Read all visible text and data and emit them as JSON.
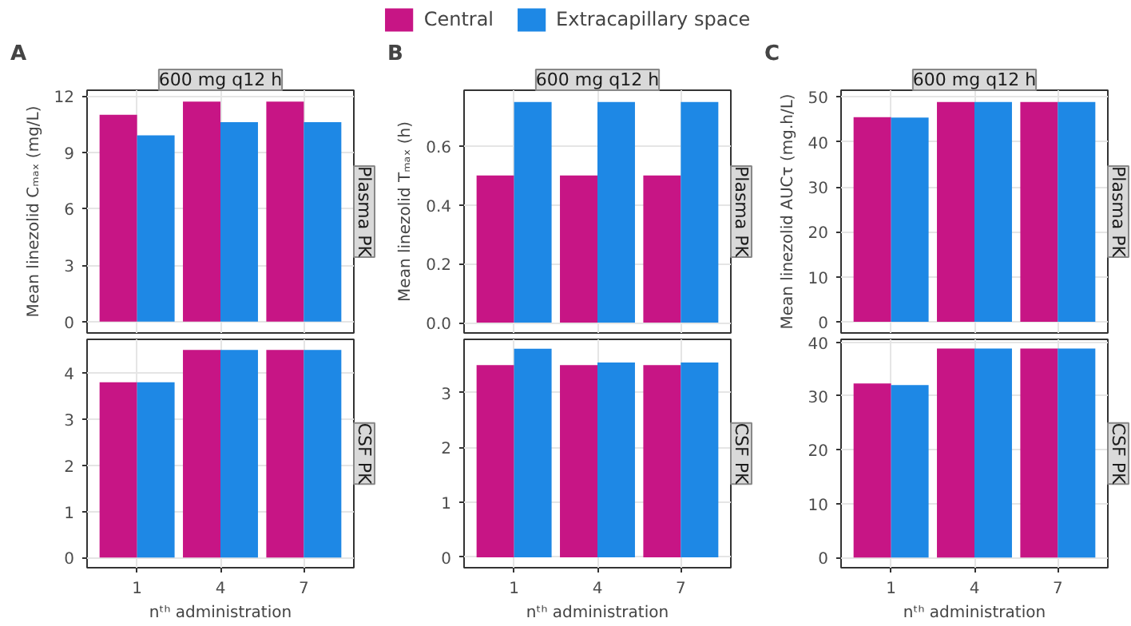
{
  "chart_data": [
    {
      "type": "bar",
      "title": "A",
      "subtitle": "600 mg q12 h",
      "ylabel": "Mean linezolid Cₘₐₓ (mg/L)",
      "annotations": [
        "Plasma PK"
      ],
      "categories": [
        "1",
        "4",
        "7"
      ],
      "legend": "top",
      "grid": true,
      "tick_labels": "y",
      "ylim": [
        -0.6,
        12.3
      ],
      "yticks": [
        0,
        3,
        6,
        9,
        12
      ],
      "series": [
        {
          "name": "Central",
          "color": "#c71585",
          "values": [
            11.0,
            11.7,
            11.7
          ]
        },
        {
          "name": "Extracapillary space",
          "color": "#1e88e5",
          "values": [
            9.9,
            10.6,
            10.6
          ]
        }
      ]
    },
    {
      "type": "bar",
      "xlabel": "nᵗʰ administration",
      "annotations": [
        "CSF PK"
      ],
      "categories": [
        "1",
        "4",
        "7"
      ],
      "grid": true,
      "ylim": [
        -0.22,
        4.73
      ],
      "yticks": [
        0,
        1,
        2,
        3,
        4
      ],
      "series": [
        {
          "color": "#c71585",
          "values": [
            3.8,
            4.5,
            4.5
          ]
        },
        {
          "color": "#1e88e5",
          "values": [
            3.8,
            4.5,
            4.5
          ]
        }
      ]
    },
    {
      "type": "bar",
      "title": "B",
      "subtitle": "600 mg q12 h",
      "ylabel": "Mean linezolid Tₘₐₓ (h)",
      "annotations": [
        "Plasma PK"
      ],
      "categories": [
        "1",
        "4",
        "7"
      ],
      "grid": true,
      "tick_labels": "y",
      "ylim": [
        -0.035,
        0.79
      ],
      "yticks": [
        {
          "value": 0,
          "label": "0.0"
        },
        {
          "value": 0.2,
          "label": "0.2"
        },
        {
          "value": 0.4,
          "label": "0.4"
        },
        {
          "value": 0.6,
          "label": "0.6"
        }
      ],
      "series": [
        {
          "color": "#c71585",
          "values": [
            0.5,
            0.5,
            0.5
          ]
        },
        {
          "color": "#1e88e5",
          "values": [
            0.75,
            0.75,
            0.75
          ]
        }
      ]
    },
    {
      "type": "bar",
      "xlabel": "nᵗʰ administration",
      "annotations": [
        "CSF PK"
      ],
      "categories": [
        "1",
        "4",
        "7"
      ],
      "grid": true,
      "ylim": [
        -0.19,
        3.97
      ],
      "yticks": [
        0,
        1,
        2,
        3
      ],
      "series": [
        {
          "color": "#c71585",
          "values": [
            3.5,
            3.5,
            3.5
          ]
        },
        {
          "color": "#1e88e5",
          "values": [
            3.8,
            3.55,
            3.55
          ]
        }
      ]
    },
    {
      "type": "bar",
      "title": "C",
      "subtitle": "600 mg q12 h",
      "ylabel": "Mean linezolid AUCτ (mg.h/L)",
      "annotations": [
        "Plasma PK"
      ],
      "categories": [
        "1",
        "4",
        "7"
      ],
      "grid": true,
      "tick_labels": "y",
      "ylim": [
        -2.5,
        51.5
      ],
      "yticks": [
        0,
        10,
        20,
        30,
        40,
        50
      ],
      "series": [
        {
          "color": "#c71585",
          "values": [
            45.5,
            48.9,
            48.9
          ]
        },
        {
          "color": "#1e88e5",
          "values": [
            45.4,
            48.9,
            48.9
          ]
        }
      ]
    },
    {
      "type": "bar",
      "xlabel": "nᵗʰ administration",
      "annotations": [
        "CSF PK"
      ],
      "categories": [
        "1",
        "4",
        "7"
      ],
      "grid": true,
      "ylim": [
        -1.9,
        40.5
      ],
      "yticks": [
        0,
        10,
        20,
        30,
        40
      ],
      "series": [
        {
          "color": "#c71585",
          "values": [
            32.3,
            38.8,
            38.8
          ]
        },
        {
          "color": "#1e88e5",
          "values": [
            32.0,
            38.8,
            38.8
          ]
        }
      ]
    }
  ]
}
